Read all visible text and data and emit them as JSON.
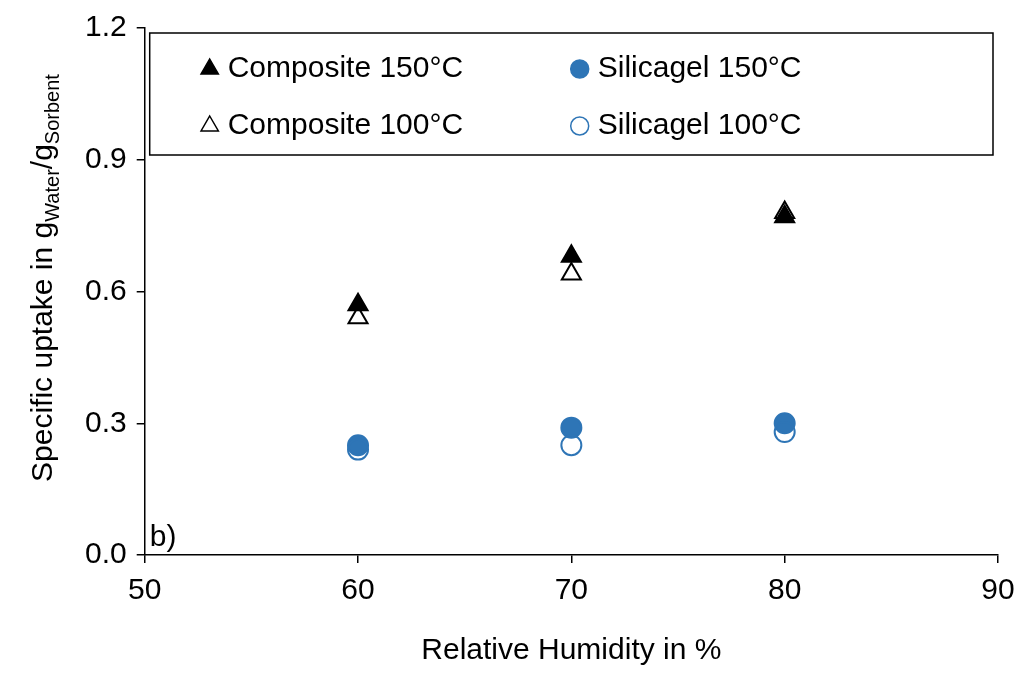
{
  "chart_data": {
    "type": "scatter",
    "xlabel": "Relative Humidity in %",
    "ylabel": "Specific uptake in g$_{Water}$/g$_{Sorbent}$",
    "x": [
      60,
      70,
      80
    ],
    "series": [
      {
        "name": "Composite 150°C",
        "color": "#000000",
        "marker": "triangle",
        "values": [
          0.57,
          0.68,
          0.77
        ]
      },
      {
        "name": "Silicagel 150°C",
        "color": "#2e75b6",
        "marker": "circle",
        "values": [
          0.25,
          0.29,
          0.3
        ]
      },
      {
        "name": "Composite 100°C",
        "color": "#000000",
        "marker": "triangle-open",
        "values": [
          0.54,
          0.64,
          0.78
        ]
      },
      {
        "name": "Silicagel 100°C",
        "color": "#2e75b6",
        "marker": "circle-open",
        "values": [
          0.24,
          0.25,
          0.28
        ]
      }
    ],
    "xlim": [
      50,
      90
    ],
    "xticks": [
      50,
      60,
      70,
      80,
      90
    ],
    "ylim": [
      0,
      1.2
    ],
    "yticks": [
      {
        "value": 0,
        "label": "0.0"
      },
      {
        "value": 0.3,
        "label": "0.3"
      },
      {
        "value": 0.6,
        "label": "0.6"
      },
      {
        "value": 0.9,
        "label": "0.9"
      },
      {
        "value": 1.2,
        "label": "1.2"
      }
    ],
    "grid": false,
    "legend": "top",
    "annotations": [
      "b)"
    ]
  }
}
